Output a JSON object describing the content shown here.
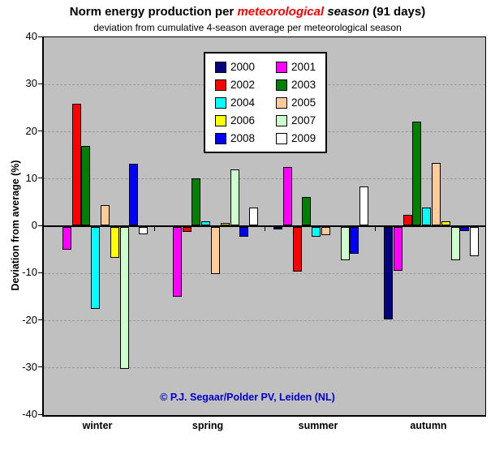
{
  "title": {
    "part1": "Norm energy production per ",
    "part2": "meteorological",
    "part3": " season",
    "part4": " (91 days)"
  },
  "subtitle": "deviation from cumulative 4-season average per meteorological season",
  "y_axis_label": "Deviation from average (%)",
  "copyright": "© P.J. Segaar/Polder PV, Leiden (NL)",
  "colors": {
    "plot_bg": "#C0C0C0",
    "gridline": "#999999",
    "title_highlight": "#FF0000",
    "copyright_text": "#0000CC",
    "axis": "#000000"
  },
  "chart_data": {
    "type": "bar",
    "categories": [
      "winter",
      "spring",
      "summer",
      "autumn"
    ],
    "ylim": [
      -40,
      40
    ],
    "yticks": [
      40,
      30,
      20,
      10,
      0,
      -10,
      -20,
      -30,
      -40
    ],
    "grid": "dashed-horizontal-every-10",
    "legend_position": "top-center-inside",
    "series": [
      {
        "name": "2000",
        "color": "#000080",
        "values": [
          null,
          null,
          -0.6,
          -19.5
        ]
      },
      {
        "name": "2001",
        "color": "#FF00FF",
        "values": [
          -4.8,
          -14.7,
          12.3,
          -9.3
        ],
        "dotted": [
          false,
          true,
          true,
          false
        ]
      },
      {
        "name": "2002",
        "color": "#FF0000",
        "values": [
          25.7,
          -1.0,
          -9.4,
          2.2
        ],
        "dotted": [
          false,
          false,
          true,
          true
        ]
      },
      {
        "name": "2003",
        "color": "#008000",
        "values": [
          16.8,
          10.0,
          6.0,
          22.0
        ]
      },
      {
        "name": "2004",
        "color": "#00FFFF",
        "values": [
          -17.3,
          0.8,
          -2.0,
          3.7
        ]
      },
      {
        "name": "2005",
        "color": "#FFCC99",
        "values": [
          4.3,
          -10.0,
          -1.7,
          13.3
        ]
      },
      {
        "name": "2006",
        "color": "#FFFF00",
        "values": [
          -6.5,
          0.6,
          0,
          0.8
        ]
      },
      {
        "name": "2007",
        "color": "#CCFFCC",
        "values": [
          -30.0,
          11.9,
          -7.1,
          -7.0
        ],
        "dotted": [
          false,
          false,
          true,
          true
        ]
      },
      {
        "name": "2008",
        "color": "#0000FF",
        "values": [
          13.0,
          -2.0,
          -5.6,
          -0.8
        ]
      },
      {
        "name": "2009",
        "color": "#FFFFFF",
        "values": [
          -1.5,
          3.8,
          8.2,
          -6.1
        ]
      }
    ]
  }
}
